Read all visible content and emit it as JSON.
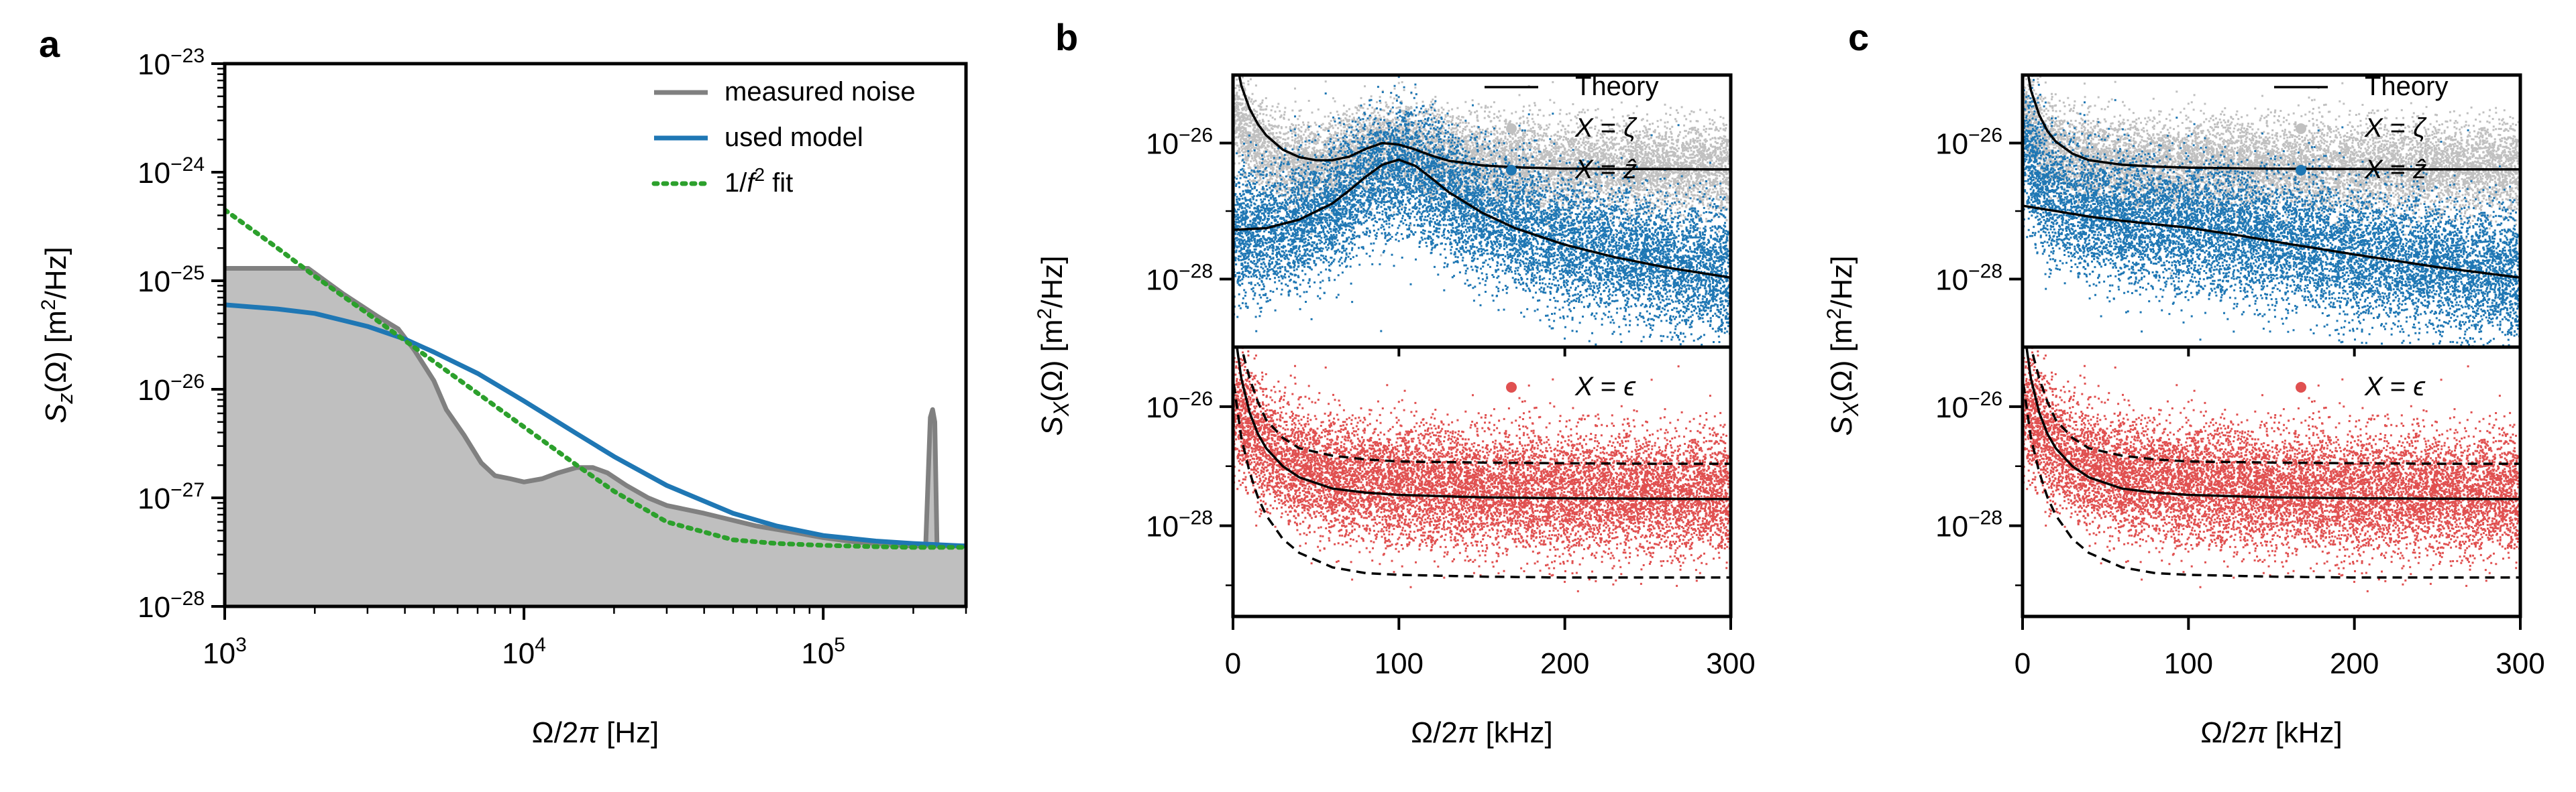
{
  "figure": {
    "panels": [
      {
        "letter": "a"
      },
      {
        "letter": "b"
      },
      {
        "letter": "c"
      }
    ]
  },
  "chart_data": [
    {
      "id": "a",
      "type": "line",
      "panel_label": "a",
      "xscale": "log",
      "yscale": "log",
      "xlim": [
        1000,
        300000
      ],
      "ylim": [
        1e-28,
        1e-23
      ],
      "xlabel": "Ω/2π [Hz]",
      "ylabel": "S_z(Ω) [m²/Hz]",
      "xticks": [
        {
          "value": 1000,
          "base": "10",
          "exp": "3"
        },
        {
          "value": 10000,
          "base": "10",
          "exp": "4"
        },
        {
          "value": 100000,
          "base": "10",
          "exp": "5"
        }
      ],
      "yticks": [
        {
          "value": 1e-28,
          "base": "10",
          "exp": "−28"
        },
        {
          "value": 1e-27,
          "base": "10",
          "exp": "−27"
        },
        {
          "value": 1e-26,
          "base": "10",
          "exp": "−26"
        },
        {
          "value": 1e-25,
          "base": "10",
          "exp": "−25"
        },
        {
          "value": 1e-24,
          "base": "10",
          "exp": "−24"
        },
        {
          "value": 1e-23,
          "base": "10",
          "exp": "−23"
        }
      ],
      "legend_position": "top-right",
      "series": [
        {
          "name": "measured noise",
          "style": "solid",
          "color": "#808080",
          "fill": "#bfbfbf",
          "x": [
            1000,
            1900,
            2500,
            3200,
            3800,
            4300,
            5000,
            5500,
            6300,
            7200,
            8000,
            9000,
            10000,
            11500,
            13000,
            15000,
            17000,
            19000,
            22000,
            26000,
            30000,
            40000,
            60000,
            80000,
            100000,
            130000,
            170000,
            200000,
            220000,
            228000,
            232000,
            236000,
            240000,
            250000,
            280000,
            300000
          ],
          "y": [
            1.3e-25,
            1.3e-25,
            7.5e-26,
            4.8e-26,
            3.6e-26,
            2.3e-26,
            1.2e-26,
            6.5e-27,
            3.8e-27,
            2.1e-27,
            1.6e-27,
            1.5e-27,
            1.4e-27,
            1.5e-27,
            1.7e-27,
            1.9e-27,
            1.9e-27,
            1.7e-27,
            1.3e-27,
            1e-27,
            8.5e-28,
            7.2e-28,
            5.5e-28,
            4.8e-28,
            4.3e-28,
            3.9e-28,
            3.7e-28,
            3.6e-28,
            3.6e-28,
            5.5e-27,
            6.5e-27,
            5e-27,
            3.6e-28,
            3.6e-28,
            3.6e-28,
            3.6e-28
          ]
        },
        {
          "name": "used model",
          "style": "solid",
          "color": "#1f77b4",
          "x": [
            1000,
            1500,
            2000,
            3000,
            4000,
            5000,
            7000,
            10000,
            15000,
            20000,
            30000,
            50000,
            70000,
            100000,
            150000,
            200000,
            300000
          ],
          "y": [
            6e-26,
            5.5e-26,
            5e-26,
            3.8e-26,
            2.9e-26,
            2.2e-26,
            1.4e-26,
            7.8e-27,
            3.9e-27,
            2.4e-27,
            1.3e-27,
            7.2e-28,
            5.5e-28,
            4.5e-28,
            4e-28,
            3.8e-28,
            3.6e-28
          ]
        },
        {
          "name": "1/f² fit",
          "style": "dotted",
          "color": "#2ca02c",
          "x": [
            1000,
            1500,
            2000,
            3000,
            5000,
            7000,
            10000,
            15000,
            20000,
            30000,
            50000,
            70000,
            100000,
            150000,
            200000,
            300000
          ],
          "y": [
            4.5e-25,
            2e-25,
            1.1e-25,
            5e-26,
            1.8e-26,
            9.2e-27,
            4.5e-27,
            2e-27,
            1.15e-27,
            6e-28,
            4.1e-28,
            3.8e-28,
            3.65e-28,
            3.55e-28,
            3.5e-28,
            3.5e-28
          ]
        }
      ]
    },
    {
      "id": "b",
      "type": "scatter",
      "panel_label": "b",
      "xlim": [
        0,
        300
      ],
      "xticks": [
        0,
        100,
        200,
        300
      ],
      "xlabel": "Ω/2π [kHz]",
      "ylabel": "S_X(Ω) [m²/Hz]",
      "top_subplot": {
        "yscale": "log",
        "ylim": [
          1e-29,
          1e-25
        ],
        "yticks": [
          {
            "value": 1e-26,
            "base": "10",
            "exp": "−26"
          },
          {
            "value": 1e-28,
            "base": "10",
            "exp": "−28"
          }
        ],
        "legend": [
          {
            "label": "Theory",
            "type": "line",
            "color": "#000000"
          },
          {
            "label": "X = ζ",
            "type": "dot",
            "color": "#c0c0c0"
          },
          {
            "label": "X = ẑ",
            "type": "dot",
            "color": "#1f77b4"
          }
        ],
        "series": [
          {
            "name": "X = ζ",
            "type": "scatter",
            "color": "#c0c0c0",
            "x": [
              0,
              10,
              20,
              30,
              50,
              70,
              90,
              100,
              110,
              130,
              160,
              200,
              250,
              300
            ],
            "y": [
              3e-26,
              1.1e-26,
              7e-27,
              5.5e-27,
              5e-27,
              7e-27,
              9e-27,
              9.5e-27,
              8e-27,
              6e-27,
              5e-27,
              4.5e-27,
              4.4e-27,
              4.3e-27
            ]
          },
          {
            "name": "X = ẑ",
            "type": "scatter",
            "color": "#1f77b4",
            "x": [
              0,
              20,
              40,
              60,
              80,
              100,
              120,
              140,
              170,
              200,
              250,
              300
            ],
            "y": [
              5e-28,
              5e-28,
              7e-28,
              1.2e-27,
              3e-27,
              4.5e-27,
              2.5e-27,
              1.2e-27,
              6e-28,
              3.8e-28,
              2e-28,
              1.2e-28
            ]
          },
          {
            "name": "Theory ζ",
            "type": "line",
            "color": "#000000",
            "x": [
              0,
              5,
              10,
              15,
              20,
              30,
              40,
              50,
              60,
              70,
              80,
              90,
              100,
              110,
              120,
              130,
              150,
              170,
              200,
              250,
              300
            ],
            "y": [
              3e-25,
              7e-26,
              3.2e-26,
              1.9e-26,
              1.3e-26,
              8e-27,
              6.2e-27,
              5.6e-27,
              5.6e-27,
              6.3e-27,
              8.2e-27,
              1e-26,
              9.5e-27,
              8e-27,
              6.5e-27,
              5.5e-27,
              4.7e-27,
              4.4e-27,
              4.2e-27,
              4.15e-27,
              4.1e-27
            ]
          },
          {
            "name": "Theory ẑ",
            "type": "line",
            "color": "#000000",
            "x": [
              0,
              20,
              40,
              60,
              70,
              80,
              90,
              100,
              110,
              120,
              130,
              150,
              170,
              200,
              230,
              260,
              300
            ],
            "y": [
              5.3e-28,
              5.6e-28,
              7.5e-28,
              1.3e-27,
              2e-27,
              3.2e-27,
              4.8e-27,
              5.7e-27,
              4.6e-27,
              3e-27,
              1.9e-27,
              9.5e-28,
              5.6e-28,
              3.2e-28,
              2.1e-28,
              1.5e-28,
              1.05e-28
            ]
          }
        ]
      },
      "bottom_subplot": {
        "yscale": "log",
        "ylim": [
          3e-30,
          1e-25
        ],
        "yticks": [
          {
            "value": 1e-26,
            "base": "10",
            "exp": "−26"
          },
          {
            "value": 1e-28,
            "base": "10",
            "exp": "−28"
          }
        ],
        "legend": [
          {
            "label": "X = ϵ",
            "type": "dot",
            "color": "#e05050"
          }
        ],
        "series": [
          {
            "name": "X = ϵ",
            "type": "scatter",
            "color": "#e05050",
            "x": [
              0,
              20,
              40,
              60,
              100,
              150,
              200,
              250,
              300
            ],
            "y": [
              1e-26,
              2e-27,
              1e-27,
              7e-28,
              5e-28,
              4e-28,
              3.8e-28,
              3.6e-28,
              3.5e-28
            ]
          },
          {
            "name": "Theory ϵ",
            "type": "line",
            "style": "solid",
            "color": "#000000",
            "x": [
              0,
              5,
              10,
              15,
              20,
              30,
              40,
              60,
              80,
              100,
              150,
              200,
              250,
              300
            ],
            "y": [
              3e-25,
              3e-26,
              8e-27,
              3.5e-27,
              2e-27,
              1e-27,
              6.5e-28,
              4.2e-28,
              3.6e-28,
              3.3e-28,
              3e-28,
              2.9e-28,
              2.85e-28,
              2.8e-28
            ]
          },
          {
            "name": "Theory ϵ upper",
            "type": "line",
            "style": "dashed",
            "color": "#000000",
            "x": [
              0,
              5,
              10,
              15,
              20,
              30,
              40,
              60,
              80,
              100,
              150,
              200,
              250,
              300
            ],
            "y": [
              1e-24,
              1e-25,
              3e-26,
              1.2e-26,
              6e-27,
              3e-27,
              2e-27,
              1.5e-27,
              1.3e-27,
              1.2e-27,
              1.15e-27,
              1.12e-27,
              1.1e-27,
              1.1e-27
            ]
          },
          {
            "name": "Theory ϵ lower",
            "type": "line",
            "style": "dashed",
            "color": "#000000",
            "x": [
              0,
              5,
              10,
              15,
              20,
              30,
              40,
              60,
              80,
              100,
              150,
              200,
              250,
              300
            ],
            "y": [
              3e-26,
              3e-27,
              8e-28,
              3e-28,
              1.5e-28,
              6e-29,
              3.5e-29,
              2e-29,
              1.6e-29,
              1.5e-29,
              1.4e-29,
              1.35e-29,
              1.35e-29,
              1.35e-29
            ]
          }
        ]
      }
    },
    {
      "id": "c",
      "type": "scatter",
      "panel_label": "c",
      "xlim": [
        0,
        300
      ],
      "xticks": [
        0,
        100,
        200,
        300
      ],
      "xlabel": "Ω/2π [kHz]",
      "ylabel": "S_X(Ω) [m²/Hz]",
      "top_subplot": {
        "yscale": "log",
        "ylim": [
          1e-29,
          1e-25
        ],
        "yticks": [
          {
            "value": 1e-26,
            "base": "10",
            "exp": "−26"
          },
          {
            "value": 1e-28,
            "base": "10",
            "exp": "−28"
          }
        ],
        "legend": [
          {
            "label": "Theory",
            "type": "line",
            "color": "#000000"
          },
          {
            "label": "X = ζ",
            "type": "dot",
            "color": "#c0c0c0"
          },
          {
            "label": "X = ẑ",
            "type": "dot",
            "color": "#1f77b4"
          }
        ],
        "series": [
          {
            "name": "X = ζ",
            "type": "scatter",
            "color": "#c0c0c0",
            "x": [
              0,
              10,
              20,
              40,
              60,
              100,
              150,
              200,
              250,
              300
            ],
            "y": [
              3e-26,
              1.2e-26,
              8e-27,
              6e-27,
              5.2e-27,
              4.7e-27,
              4.5e-27,
              4.4e-27,
              4.3e-27,
              4.3e-27
            ]
          },
          {
            "name": "X = ẑ",
            "type": "scatter",
            "color": "#1f77b4",
            "x": [
              0,
              10,
              20,
              40,
              60,
              100,
              150,
              200,
              250,
              300
            ],
            "y": [
              1e-26,
              2.5e-27,
              1.5e-27,
              1e-27,
              8e-28,
              6e-28,
              4e-28,
              2.5e-28,
              1.6e-28,
              1.1e-28
            ]
          },
          {
            "name": "Theory ζ",
            "type": "line",
            "color": "#000000",
            "x": [
              0,
              5,
              10,
              15,
              20,
              30,
              40,
              60,
              80,
              100,
              150,
              200,
              250,
              300
            ],
            "y": [
              3e-25,
              6e-26,
              2.6e-26,
              1.5e-26,
              1.05e-26,
              7e-27,
              5.6e-27,
              4.8e-27,
              4.5e-27,
              4.35e-27,
              4.2e-27,
              4.15e-27,
              4.1e-27,
              4.1e-27
            ]
          },
          {
            "name": "Theory ẑ",
            "type": "line",
            "color": "#000000",
            "x": [
              0,
              20,
              40,
              60,
              80,
              100,
              130,
              160,
              200,
              250,
              300
            ],
            "y": [
              1.2e-27,
              1e-27,
              8.3e-28,
              7.2e-28,
              6.4e-28,
              5.7e-28,
              4.4e-28,
              3.3e-28,
              2.3e-28,
              1.5e-28,
              1.05e-28
            ]
          }
        ]
      },
      "bottom_subplot": {
        "yscale": "log",
        "ylim": [
          3e-30,
          1e-25
        ],
        "yticks": [
          {
            "value": 1e-26,
            "base": "10",
            "exp": "−26"
          },
          {
            "value": 1e-28,
            "base": "10",
            "exp": "−28"
          }
        ],
        "legend": [
          {
            "label": "X = ϵ",
            "type": "dot",
            "color": "#e05050"
          }
        ],
        "series": [
          {
            "name": "X = ϵ",
            "type": "scatter",
            "color": "#e05050",
            "x": [
              0,
              20,
              40,
              60,
              100,
              150,
              200,
              250,
              300
            ],
            "y": [
              1e-26,
              2e-27,
              1e-27,
              7e-28,
              5e-28,
              4e-28,
              3.8e-28,
              3.6e-28,
              3.5e-28
            ]
          },
          {
            "name": "Theory ϵ",
            "type": "line",
            "style": "solid",
            "color": "#000000",
            "x": [
              0,
              5,
              10,
              15,
              20,
              30,
              40,
              60,
              80,
              100,
              150,
              200,
              250,
              300
            ],
            "y": [
              3e-25,
              3e-26,
              8e-27,
              3.5e-27,
              2e-27,
              1e-27,
              6.5e-28,
              4.2e-28,
              3.6e-28,
              3.3e-28,
              3e-28,
              2.9e-28,
              2.85e-28,
              2.8e-28
            ]
          },
          {
            "name": "Theory ϵ upper",
            "type": "line",
            "style": "dashed",
            "color": "#000000",
            "x": [
              0,
              5,
              10,
              15,
              20,
              30,
              40,
              60,
              80,
              100,
              150,
              200,
              250,
              300
            ],
            "y": [
              1e-24,
              1e-25,
              3e-26,
              1.2e-26,
              6e-27,
              3e-27,
              2e-27,
              1.5e-27,
              1.3e-27,
              1.2e-27,
              1.15e-27,
              1.12e-27,
              1.1e-27,
              1.1e-27
            ]
          },
          {
            "name": "Theory ϵ lower",
            "type": "line",
            "style": "dashed",
            "color": "#000000",
            "x": [
              0,
              5,
              10,
              15,
              20,
              30,
              40,
              60,
              80,
              100,
              150,
              200,
              250,
              300
            ],
            "y": [
              3e-26,
              3e-27,
              8e-28,
              3e-28,
              1.5e-28,
              6e-29,
              3.5e-29,
              2e-29,
              1.6e-29,
              1.5e-29,
              1.4e-29,
              1.35e-29,
              1.35e-29,
              1.35e-29
            ]
          }
        ]
      }
    }
  ]
}
